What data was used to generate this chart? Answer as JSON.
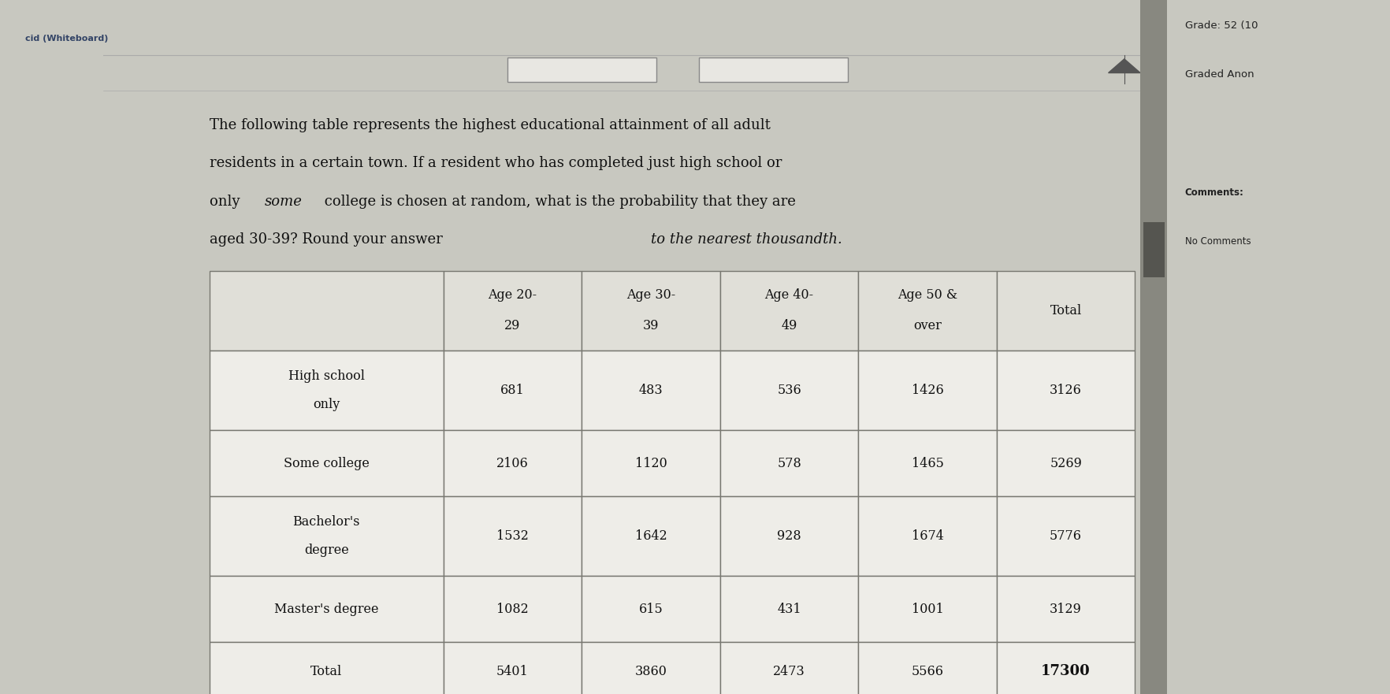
{
  "col_headers": [
    "",
    "Age 20-\n29",
    "Age 30-\n39",
    "Age 40-\n49",
    "Age 50 &\nover",
    "Total"
  ],
  "rows": [
    [
      "High school\nonly",
      "681",
      "483",
      "536",
      "1426",
      "3126"
    ],
    [
      "Some college",
      "2106",
      "1120",
      "578",
      "1465",
      "5269"
    ],
    [
      "Bachelor's\ndegree",
      "1532",
      "1642",
      "928",
      "1674",
      "5776"
    ],
    [
      "Master's degree",
      "1082",
      "615",
      "431",
      "1001",
      "3129"
    ],
    [
      "Total",
      "5401",
      "3860",
      "2473",
      "5566",
      "17300"
    ]
  ],
  "main_bg": "#c8c8c0",
  "content_bg": "#e8e7e2",
  "sidebar_bg": "#c0bfba",
  "table_cell_bg": "#eeede8",
  "table_header_bg": "#e0dfd8",
  "table_highlight_bg": "#ddd0b8",
  "border_color": "#888880",
  "text_color": "#111111",
  "sidebar_text_color": "#222222",
  "top_bar_bg": "#e0dfd8",
  "separator_color": "#aaaaaa"
}
